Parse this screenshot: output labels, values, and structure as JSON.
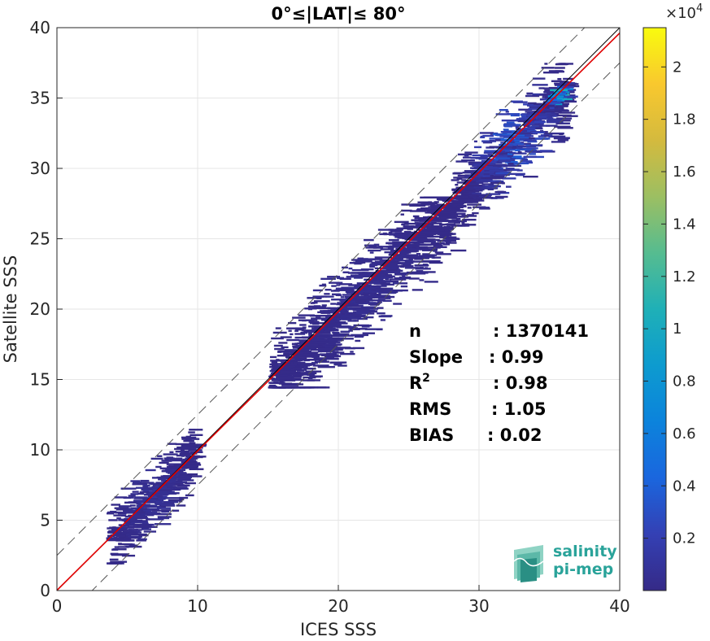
{
  "chart_data": {
    "type": "heatmap",
    "title": "0°≤|LAT|≤ 80°",
    "xlabel": "ICES SSS",
    "ylabel": "Satellite SSS",
    "xlim": [
      0,
      40
    ],
    "ylim": [
      0,
      40
    ],
    "x_ticks": [
      "0",
      "10",
      "20",
      "30",
      "40"
    ],
    "y_ticks": [
      "0",
      "5",
      "10",
      "15",
      "20",
      "25",
      "30",
      "35",
      "40"
    ],
    "grid": true,
    "colorbar": {
      "colormap": "parula",
      "range": [
        0,
        2.15
      ],
      "multiplier": "×10",
      "exponent": "4",
      "ticks": [
        "0.2",
        "0.4",
        "0.6",
        "0.8",
        "1",
        "1.2",
        "1.4",
        "1.6",
        "1.8",
        "2"
      ],
      "tick_values": [
        0.2,
        0.4,
        0.6,
        0.8,
        1.0,
        1.2,
        1.4,
        1.6,
        1.8,
        2.0
      ]
    },
    "reference_lines": [
      {
        "type": "identity",
        "color": "#000000",
        "style": "solid",
        "slope": 1,
        "intercept": 0
      },
      {
        "type": "fit",
        "color": "#e00000",
        "style": "solid",
        "slope": 0.99,
        "intercept": 0.02
      },
      {
        "type": "upper-bound",
        "color": "#555555",
        "style": "dashed",
        "slope": 1,
        "intercept": 2.5
      },
      {
        "type": "lower-bound",
        "color": "#555555",
        "style": "dashed",
        "slope": 1,
        "intercept": -2.5
      }
    ],
    "density_clusters": [
      {
        "x_range": [
          3.5,
          9.5
        ],
        "y_range": [
          2,
          11.5
        ],
        "peak": 0.1
      },
      {
        "x_range": [
          15,
          28
        ],
        "y_range": [
          14.5,
          28
        ],
        "peak": 0.05
      },
      {
        "x_range": [
          28,
          36
        ],
        "y_range": [
          26,
          37.5
        ],
        "peak": 0.5
      },
      {
        "x_range": [
          34.5,
          36
        ],
        "y_range": [
          34,
          36.5
        ],
        "peak": 2.1
      }
    ],
    "stats": [
      {
        "label": "n",
        "sep": ":",
        "value": "1370141"
      },
      {
        "label": "Slope",
        "sep": ":",
        "value": "0.99"
      },
      {
        "label": "R",
        "sup": "2",
        "sep": ":",
        "value": "0.98"
      },
      {
        "label": "RMS",
        "sep": ":",
        "value": "1.05"
      },
      {
        "label": "BIAS",
        "sep": ":",
        "value": "0.02"
      }
    ]
  },
  "logo": {
    "line1": "salinity",
    "line2": "pi-mep",
    "color": "#2aa39a"
  }
}
